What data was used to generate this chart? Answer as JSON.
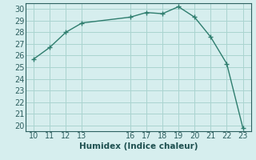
{
  "x": [
    10,
    11,
    12,
    13,
    16,
    17,
    18,
    19,
    20,
    21,
    22,
    23
  ],
  "y": [
    25.7,
    26.7,
    28.0,
    28.8,
    29.3,
    29.7,
    29.6,
    30.2,
    29.3,
    27.6,
    25.3,
    19.8
  ],
  "line_color": "#2e7d6e",
  "marker_color": "#2e7d6e",
  "bg_color": "#d6eeee",
  "grid_color": "#aad4d0",
  "xlabel": "Humidex (Indice chaleur)",
  "xlim": [
    9.5,
    23.5
  ],
  "ylim": [
    19.5,
    30.5
  ],
  "yticks": [
    20,
    21,
    22,
    23,
    24,
    25,
    26,
    27,
    28,
    29,
    30
  ],
  "xticks": [
    10,
    11,
    12,
    13,
    16,
    17,
    18,
    19,
    20,
    21,
    22,
    23
  ],
  "tick_fontsize": 7,
  "xlabel_fontsize": 7.5,
  "marker_size": 3,
  "line_width": 1.0
}
